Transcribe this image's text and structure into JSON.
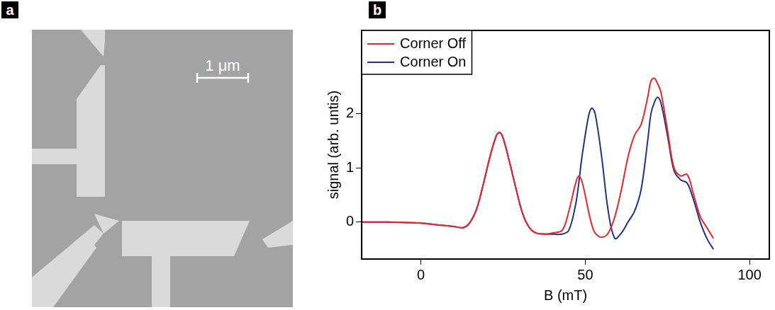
{
  "panel_labels": [
    "a",
    "b"
  ],
  "image": {
    "scale_bar": "1 μm"
  },
  "chart_data": {
    "type": "line",
    "x_label": "B (mT)",
    "y_label": "signal (arb. untis)",
    "x": [
      -18,
      -10,
      0,
      5,
      10,
      13,
      15,
      17,
      19,
      21,
      23,
      24,
      25,
      27,
      29,
      31,
      33,
      35,
      38,
      40,
      43,
      45,
      47,
      48,
      49,
      51,
      52,
      53,
      55,
      57,
      59,
      61,
      63,
      65,
      67,
      69,
      70,
      71,
      72,
      73,
      75,
      77,
      79,
      81,
      83,
      85,
      87,
      89
    ],
    "series": [
      {
        "name": "Corner Off",
        "color": "#e8262b",
        "values": [
          0,
          0,
          -0.02,
          -0.05,
          -0.08,
          -0.1,
          0,
          0.25,
          0.7,
          1.2,
          1.6,
          1.65,
          1.55,
          1.1,
          0.6,
          0.15,
          -0.1,
          -0.2,
          -0.22,
          -0.2,
          -0.15,
          0.2,
          0.7,
          0.85,
          0.75,
          0.2,
          -0.05,
          -0.2,
          -0.28,
          -0.2,
          0.1,
          0.6,
          1.2,
          1.6,
          1.8,
          2.3,
          2.6,
          2.65,
          2.55,
          2.4,
          1.7,
          1.0,
          0.85,
          0.88,
          0.5,
          0.1,
          -0.1,
          -0.3
        ]
      },
      {
        "name": "Corner On",
        "color": "#262f8c",
        "values": [
          0,
          0,
          -0.02,
          -0.05,
          -0.08,
          -0.1,
          0,
          0.25,
          0.7,
          1.2,
          1.6,
          1.65,
          1.55,
          1.1,
          0.6,
          0.15,
          -0.1,
          -0.2,
          -0.22,
          -0.22,
          -0.22,
          -0.15,
          0.3,
          0.7,
          1.2,
          1.95,
          2.1,
          2.0,
          1.2,
          0.2,
          -0.3,
          -0.2,
          0.0,
          0.2,
          0.6,
          1.5,
          2.0,
          2.2,
          2.3,
          2.2,
          1.6,
          0.95,
          0.78,
          0.72,
          0.4,
          0.0,
          -0.3,
          -0.5
        ]
      }
    ],
    "xlim": [
      -18,
      106
    ],
    "ylim": [
      -0.68,
      3.53
    ],
    "xticks": [
      0,
      50,
      100
    ],
    "yticks": [
      0,
      1,
      2
    ],
    "grid": false,
    "legend": "upper left"
  }
}
